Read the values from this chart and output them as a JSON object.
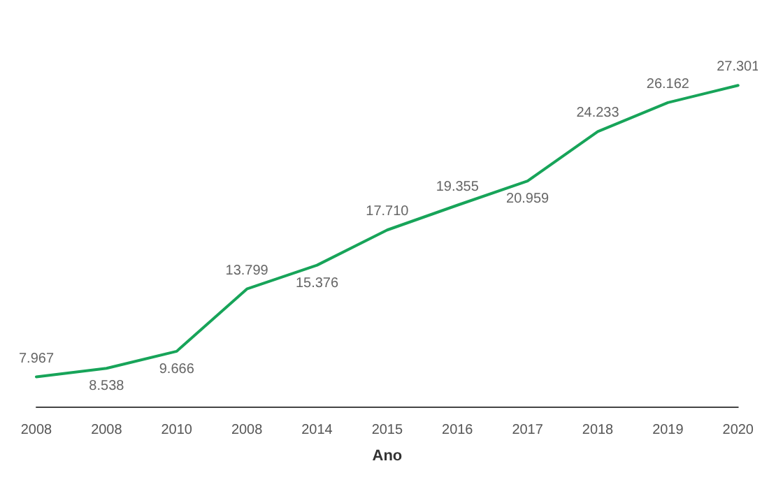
{
  "chart_data": {
    "type": "line",
    "xlabel": "Ano",
    "categories": [
      "2008",
      "2008",
      "2010",
      "2008",
      "2014",
      "2015",
      "2016",
      "2017",
      "2018",
      "2019",
      "2020"
    ],
    "series": [
      {
        "color": "#17a459",
        "values": [
          7967,
          8538,
          9666,
          13799,
          15376,
          17710,
          19355,
          20959,
          24233,
          26162,
          27301
        ],
        "value_labels": [
          "7.967",
          "8.538",
          "9.666",
          "13.799",
          "15.376",
          "17.710",
          "19.355",
          "20.959",
          "24.233",
          "26.162",
          "27.301"
        ]
      }
    ],
    "marker": "none",
    "grid": false,
    "tick_labels": "x"
  }
}
